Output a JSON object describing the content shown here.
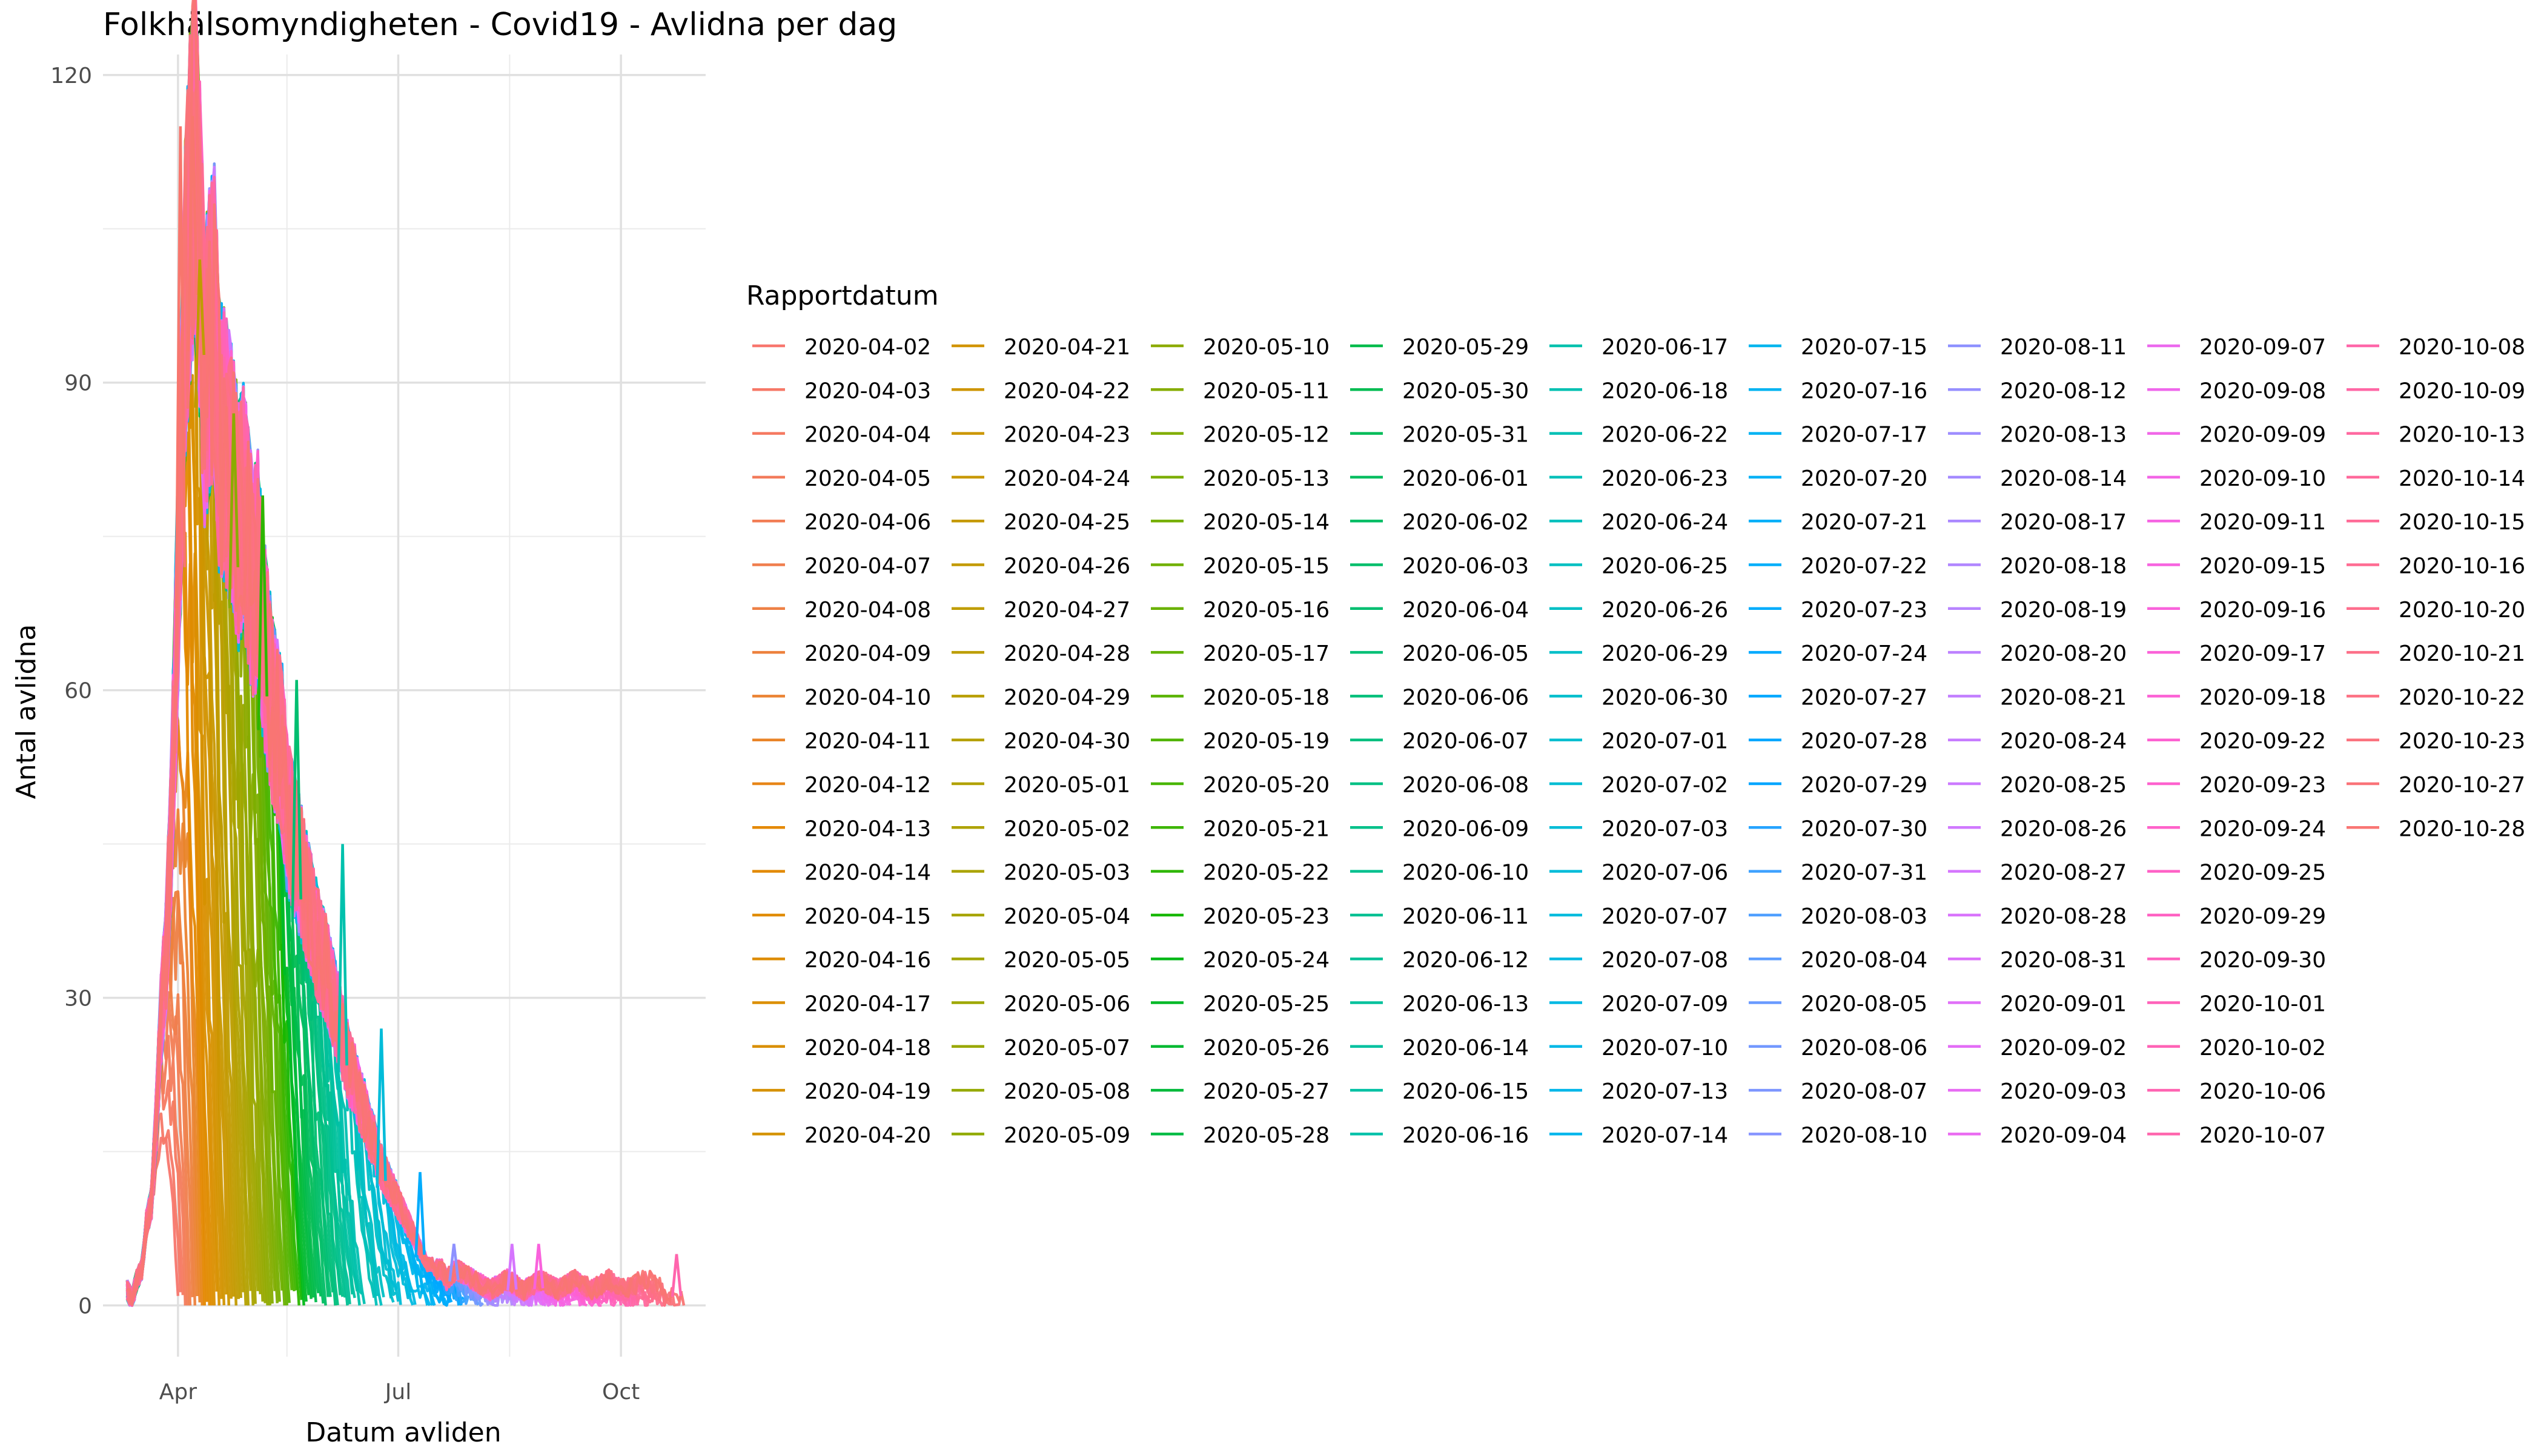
{
  "chart_data": {
    "type": "line",
    "title": "Folkhälsomyndigheten - Covid19 - Avlidna per dag",
    "xlabel": "Datum avliden",
    "ylabel": "Antal avlidna",
    "xlim": [
      "2020-03-01",
      "2020-11-05"
    ],
    "ylim": [
      -5,
      122
    ],
    "x_ticks": [
      {
        "label": "Apr",
        "date": "2020-04-01"
      },
      {
        "label": "Jul",
        "date": "2020-07-01"
      },
      {
        "label": "Oct",
        "date": "2020-10-01"
      }
    ],
    "x_minor_ticks": [
      "2020-05-16",
      "2020-08-16"
    ],
    "y_ticks": [
      0,
      30,
      60,
      90,
      120
    ],
    "y_minor_ticks": [
      15,
      45,
      75,
      105
    ],
    "grid": true,
    "legend": {
      "title": "Rapportdatum",
      "placement": "right",
      "entries": [
        "2020-04-02",
        "2020-04-03",
        "2020-04-04",
        "2020-04-05",
        "2020-04-06",
        "2020-04-07",
        "2020-04-08",
        "2020-04-09",
        "2020-04-10",
        "2020-04-11",
        "2020-04-12",
        "2020-04-13",
        "2020-04-14",
        "2020-04-15",
        "2020-04-16",
        "2020-04-17",
        "2020-04-18",
        "2020-04-19",
        "2020-04-20",
        "2020-04-21",
        "2020-04-22",
        "2020-04-23",
        "2020-04-24",
        "2020-04-25",
        "2020-04-26",
        "2020-04-27",
        "2020-04-28",
        "2020-04-29",
        "2020-04-30",
        "2020-05-01",
        "2020-05-02",
        "2020-05-03",
        "2020-05-04",
        "2020-05-05",
        "2020-05-06",
        "2020-05-07",
        "2020-05-08",
        "2020-05-09",
        "2020-05-10",
        "2020-05-11",
        "2020-05-12",
        "2020-05-13",
        "2020-05-14",
        "2020-05-15",
        "2020-05-16",
        "2020-05-17",
        "2020-05-18",
        "2020-05-19",
        "2020-05-20",
        "2020-05-21",
        "2020-05-22",
        "2020-05-23",
        "2020-05-24",
        "2020-05-25",
        "2020-05-26",
        "2020-05-27",
        "2020-05-28",
        "2020-05-29",
        "2020-05-30",
        "2020-05-31",
        "2020-06-01",
        "2020-06-02",
        "2020-06-03",
        "2020-06-04",
        "2020-06-05",
        "2020-06-06",
        "2020-06-07",
        "2020-06-08",
        "2020-06-09",
        "2020-06-10",
        "2020-06-11",
        "2020-06-12",
        "2020-06-13",
        "2020-06-14",
        "2020-06-15",
        "2020-06-16",
        "2020-06-17",
        "2020-06-18",
        "2020-06-22",
        "2020-06-23",
        "2020-06-24",
        "2020-06-25",
        "2020-06-26",
        "2020-06-29",
        "2020-06-30",
        "2020-07-01",
        "2020-07-02",
        "2020-07-03",
        "2020-07-06",
        "2020-07-07",
        "2020-07-08",
        "2020-07-09",
        "2020-07-10",
        "2020-07-13",
        "2020-07-14",
        "2020-07-15",
        "2020-07-16",
        "2020-07-17",
        "2020-07-20",
        "2020-07-21",
        "2020-07-22",
        "2020-07-23",
        "2020-07-24",
        "2020-07-27",
        "2020-07-28",
        "2020-07-29",
        "2020-07-30",
        "2020-07-31",
        "2020-08-03",
        "2020-08-04",
        "2020-08-05",
        "2020-08-06",
        "2020-08-07",
        "2020-08-10",
        "2020-08-11",
        "2020-08-12",
        "2020-08-13",
        "2020-08-14",
        "2020-08-17",
        "2020-08-18",
        "2020-08-19",
        "2020-08-20",
        "2020-08-21",
        "2020-08-24",
        "2020-08-25",
        "2020-08-26",
        "2020-08-27",
        "2020-08-28",
        "2020-08-31",
        "2020-09-01",
        "2020-09-02",
        "2020-09-03",
        "2020-09-04",
        "2020-09-07",
        "2020-09-08",
        "2020-09-09",
        "2020-09-10",
        "2020-09-11",
        "2020-09-15",
        "2020-09-16",
        "2020-09-17",
        "2020-09-18",
        "2020-09-22",
        "2020-09-23",
        "2020-09-24",
        "2020-09-25",
        "2020-09-29",
        "2020-09-30",
        "2020-10-01",
        "2020-10-02",
        "2020-10-06",
        "2020-10-07",
        "2020-10-08",
        "2020-10-09",
        "2020-10-13",
        "2020-10-14",
        "2020-10-15",
        "2020-10-16",
        "2020-10-20",
        "2020-10-21",
        "2020-10-22",
        "2020-10-23",
        "2020-10-27",
        "2020-10-28"
      ]
    },
    "series_note_values": {
      "final_curve": [
        {
          "x": "2020-03-11",
          "y": 1
        },
        {
          "x": "2020-03-13",
          "y": 0
        },
        {
          "x": "2020-03-15",
          "y": 2
        },
        {
          "x": "2020-03-17",
          "y": 3
        },
        {
          "x": "2020-03-19",
          "y": 8
        },
        {
          "x": "2020-03-21",
          "y": 10
        },
        {
          "x": "2020-03-23",
          "y": 18
        },
        {
          "x": "2020-03-25",
          "y": 28
        },
        {
          "x": "2020-03-27",
          "y": 34
        },
        {
          "x": "2020-03-29",
          "y": 45
        },
        {
          "x": "2020-03-31",
          "y": 62
        },
        {
          "x": "2020-04-02",
          "y": 80
        },
        {
          "x": "2020-04-04",
          "y": 98
        },
        {
          "x": "2020-04-06",
          "y": 107
        },
        {
          "x": "2020-04-08",
          "y": 112
        },
        {
          "x": "2020-04-10",
          "y": 103
        },
        {
          "x": "2020-04-12",
          "y": 90
        },
        {
          "x": "2020-04-14",
          "y": 94
        },
        {
          "x": "2020-04-16",
          "y": 96
        },
        {
          "x": "2020-04-18",
          "y": 85
        },
        {
          "x": "2020-04-20",
          "y": 84
        },
        {
          "x": "2020-04-22",
          "y": 82
        },
        {
          "x": "2020-04-24",
          "y": 80
        },
        {
          "x": "2020-04-26",
          "y": 76
        },
        {
          "x": "2020-04-28",
          "y": 78
        },
        {
          "x": "2020-04-30",
          "y": 74
        },
        {
          "x": "2020-05-02",
          "y": 70
        },
        {
          "x": "2020-05-04",
          "y": 72
        },
        {
          "x": "2020-05-06",
          "y": 66
        },
        {
          "x": "2020-05-08",
          "y": 62
        },
        {
          "x": "2020-05-10",
          "y": 58
        },
        {
          "x": "2020-05-12",
          "y": 56
        },
        {
          "x": "2020-05-14",
          "y": 54
        },
        {
          "x": "2020-05-16",
          "y": 48
        },
        {
          "x": "2020-05-18",
          "y": 46
        },
        {
          "x": "2020-05-20",
          "y": 44
        },
        {
          "x": "2020-05-22",
          "y": 42
        },
        {
          "x": "2020-05-24",
          "y": 40
        },
        {
          "x": "2020-05-26",
          "y": 38
        },
        {
          "x": "2020-05-28",
          "y": 36
        },
        {
          "x": "2020-05-30",
          "y": 34
        },
        {
          "x": "2020-06-01",
          "y": 33
        },
        {
          "x": "2020-06-03",
          "y": 31
        },
        {
          "x": "2020-06-05",
          "y": 29
        },
        {
          "x": "2020-06-07",
          "y": 27
        },
        {
          "x": "2020-06-09",
          "y": 25
        },
        {
          "x": "2020-06-11",
          "y": 23
        },
        {
          "x": "2020-06-13",
          "y": 22
        },
        {
          "x": "2020-06-15",
          "y": 20
        },
        {
          "x": "2020-06-17",
          "y": 19
        },
        {
          "x": "2020-06-19",
          "y": 17
        },
        {
          "x": "2020-06-21",
          "y": 16
        },
        {
          "x": "2020-06-23",
          "y": 14
        },
        {
          "x": "2020-06-25",
          "y": 13
        },
        {
          "x": "2020-06-27",
          "y": 12
        },
        {
          "x": "2020-06-29",
          "y": 11
        },
        {
          "x": "2020-07-01",
          "y": 10
        },
        {
          "x": "2020-07-03",
          "y": 9
        },
        {
          "x": "2020-07-05",
          "y": 8
        },
        {
          "x": "2020-07-07",
          "y": 7
        },
        {
          "x": "2020-07-09",
          "y": 6
        },
        {
          "x": "2020-07-11",
          "y": 5
        },
        {
          "x": "2020-07-13",
          "y": 4
        },
        {
          "x": "2020-07-15",
          "y": 4
        },
        {
          "x": "2020-07-17",
          "y": 3
        },
        {
          "x": "2020-07-19",
          "y": 3
        },
        {
          "x": "2020-07-21",
          "y": 2
        },
        {
          "x": "2020-07-25",
          "y": 3
        },
        {
          "x": "2020-08-01",
          "y": 2
        },
        {
          "x": "2020-08-08",
          "y": 1
        },
        {
          "x": "2020-08-15",
          "y": 2
        },
        {
          "x": "2020-08-22",
          "y": 1
        },
        {
          "x": "2020-08-29",
          "y": 2
        },
        {
          "x": "2020-09-05",
          "y": 1
        },
        {
          "x": "2020-09-12",
          "y": 2
        },
        {
          "x": "2020-09-19",
          "y": 1
        },
        {
          "x": "2020-09-26",
          "y": 2
        },
        {
          "x": "2020-10-03",
          "y": 1
        },
        {
          "x": "2020-10-10",
          "y": 2
        },
        {
          "x": "2020-10-17",
          "y": 2
        },
        {
          "x": "2020-10-24",
          "y": 1
        }
      ],
      "spikes": [
        {
          "x": "2020-04-07",
          "y": 116
        },
        {
          "x": "2020-04-02",
          "y": 115
        },
        {
          "x": "2020-04-10",
          "y": 102
        },
        {
          "x": "2020-04-24",
          "y": 87
        },
        {
          "x": "2020-05-06",
          "y": 79
        },
        {
          "x": "2020-05-20",
          "y": 61
        },
        {
          "x": "2020-06-08",
          "y": 45
        },
        {
          "x": "2020-06-24",
          "y": 27
        },
        {
          "x": "2020-07-10",
          "y": 13
        },
        {
          "x": "2020-07-24",
          "y": 6
        },
        {
          "x": "2020-08-17",
          "y": 6
        },
        {
          "x": "2020-08-28",
          "y": 6
        },
        {
          "x": "2020-10-24",
          "y": 5
        }
      ]
    }
  }
}
